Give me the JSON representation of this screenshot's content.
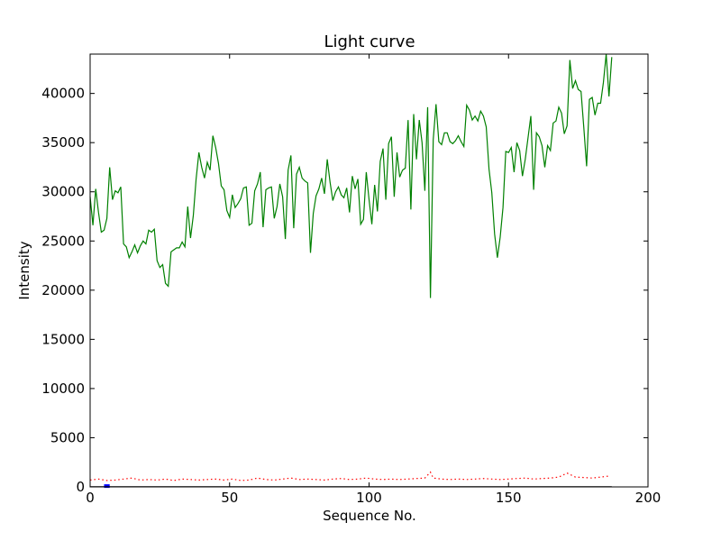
{
  "chart_data": {
    "type": "line",
    "title": "Light curve",
    "xlabel": "Sequence No.",
    "ylabel": "Intensity",
    "xlim": [
      0,
      200
    ],
    "ylim": [
      0,
      44000
    ],
    "xticks": [
      0,
      50,
      100,
      150,
      200
    ],
    "yticks": [
      0,
      5000,
      10000,
      15000,
      20000,
      25000,
      30000,
      35000,
      40000
    ],
    "xtick_labels": [
      "0",
      "50",
      "100",
      "150",
      "200"
    ],
    "ytick_labels": [
      "0",
      "5000",
      "10000",
      "15000",
      "20000",
      "25000",
      "30000",
      "35000",
      "40000"
    ],
    "grid": false,
    "series": [
      {
        "color": "#008000",
        "style": "solid",
        "x": [
          0,
          1,
          2,
          3,
          4,
          5,
          6,
          7,
          8,
          9,
          10,
          11,
          12,
          13,
          14,
          15,
          16,
          17,
          18,
          19,
          20,
          21,
          22,
          23,
          24,
          25,
          26,
          27,
          28,
          29,
          30,
          31,
          32,
          33,
          34,
          35,
          36,
          37,
          38,
          39,
          40,
          41,
          42,
          43,
          44,
          45,
          46,
          47,
          48,
          49,
          50,
          51,
          52,
          53,
          54,
          55,
          56,
          57,
          58,
          59,
          60,
          61,
          62,
          63,
          64,
          65,
          66,
          67,
          68,
          69,
          70,
          71,
          72,
          73,
          74,
          75,
          76,
          77,
          78,
          79,
          80,
          81,
          82,
          83,
          84,
          85,
          86,
          87,
          88,
          89,
          90,
          91,
          92,
          93,
          94,
          95,
          96,
          97,
          98,
          99,
          100,
          101,
          102,
          103,
          104,
          105,
          106,
          107,
          108,
          109,
          110,
          111,
          112,
          113,
          114,
          115,
          116,
          117,
          118,
          119,
          120,
          121,
          122,
          123,
          124,
          125,
          126,
          127,
          128,
          129,
          130,
          131,
          132,
          133,
          134,
          135,
          136,
          137,
          138,
          139,
          140,
          141,
          142,
          143,
          144,
          145,
          146,
          147,
          148,
          149,
          150,
          151,
          152,
          153,
          154,
          155,
          156,
          157,
          158,
          159,
          160,
          161,
          162,
          163,
          164,
          165,
          166,
          167,
          168,
          169,
          170,
          171,
          172,
          173,
          174,
          175,
          176,
          177,
          178,
          179,
          180,
          181,
          182,
          183,
          184,
          185,
          186,
          187
        ],
        "y": [
          29500,
          26600,
          30300,
          27900,
          25900,
          26100,
          27300,
          32500,
          29200,
          30100,
          29900,
          30500,
          24700,
          24400,
          23300,
          23900,
          24600,
          23800,
          24500,
          25000,
          24700,
          26100,
          25900,
          26200,
          23000,
          22300,
          22600,
          20700,
          20400,
          23900,
          24100,
          24300,
          24300,
          24900,
          24400,
          28500,
          25300,
          27600,
          31300,
          34000,
          32500,
          31400,
          33000,
          32200,
          35700,
          34500,
          32900,
          30600,
          30200,
          28100,
          27400,
          29700,
          28400,
          28800,
          29300,
          30400,
          30500,
          26600,
          26800,
          30100,
          30800,
          32000,
          26400,
          30200,
          30400,
          30500,
          27300,
          28500,
          30800,
          29500,
          25200,
          32200,
          33700,
          26300,
          31800,
          32500,
          31400,
          31100,
          30900,
          23800,
          27800,
          29600,
          30300,
          31400,
          29800,
          33300,
          31000,
          29100,
          30000,
          30500,
          29700,
          29400,
          30400,
          27900,
          31600,
          30300,
          31300,
          26700,
          27200,
          32000,
          29200,
          26700,
          30700,
          28000,
          33100,
          34400,
          29200,
          34900,
          35600,
          29500,
          34000,
          31500,
          32200,
          32400,
          37300,
          28200,
          37900,
          33300,
          37300,
          35000,
          30100,
          38600,
          19200,
          35300,
          38900,
          35100,
          34800,
          36000,
          36000,
          35100,
          34900,
          35200,
          35700,
          35100,
          34600,
          38800,
          38300,
          37300,
          37700,
          37200,
          38200,
          37700,
          36600,
          32300,
          29900,
          25700,
          23300,
          25400,
          28400,
          34100,
          34000,
          34500,
          32000,
          35000,
          34200,
          31600,
          33300,
          35500,
          37700,
          30200,
          36000,
          35600,
          34700,
          32500,
          34700,
          34200,
          37000,
          37200,
          38600,
          38000,
          35900,
          36700,
          43400,
          40500,
          41300,
          40400,
          40200,
          36500,
          32600,
          39400,
          39600,
          37800,
          39000,
          39000,
          41100,
          44000,
          39700,
          43700
        ]
      },
      {
        "color": "#ff0000",
        "style": "dotted",
        "x": [
          0,
          3,
          6,
          9,
          12,
          15,
          18,
          21,
          24,
          27,
          30,
          33,
          36,
          39,
          42,
          45,
          48,
          51,
          54,
          57,
          60,
          63,
          66,
          69,
          72,
          75,
          78,
          81,
          84,
          87,
          90,
          93,
          96,
          99,
          102,
          105,
          108,
          111,
          114,
          117,
          120,
          122,
          123,
          126,
          129,
          132,
          135,
          138,
          141,
          144,
          147,
          150,
          153,
          156,
          159,
          162,
          165,
          168,
          171,
          174,
          177,
          180,
          183,
          186
        ],
        "y": [
          700,
          800,
          650,
          700,
          800,
          900,
          700,
          750,
          700,
          800,
          650,
          800,
          750,
          700,
          750,
          800,
          700,
          800,
          650,
          700,
          900,
          750,
          700,
          800,
          900,
          750,
          800,
          750,
          700,
          800,
          850,
          750,
          800,
          900,
          800,
          750,
          800,
          750,
          800,
          850,
          900,
          1500,
          900,
          800,
          750,
          800,
          750,
          800,
          850,
          800,
          750,
          800,
          850,
          900,
          800,
          850,
          900,
          1000,
          1400,
          1000,
          950,
          900,
          1000,
          1100
        ]
      },
      {
        "color": "#0000ff",
        "style": "solid",
        "x": [
          5,
          6,
          7
        ],
        "y": [
          80,
          80,
          80
        ]
      },
      {
        "color": "#000000",
        "style": "solid",
        "x": [
          0,
          187
        ],
        "y": [
          20,
          20
        ]
      }
    ]
  }
}
